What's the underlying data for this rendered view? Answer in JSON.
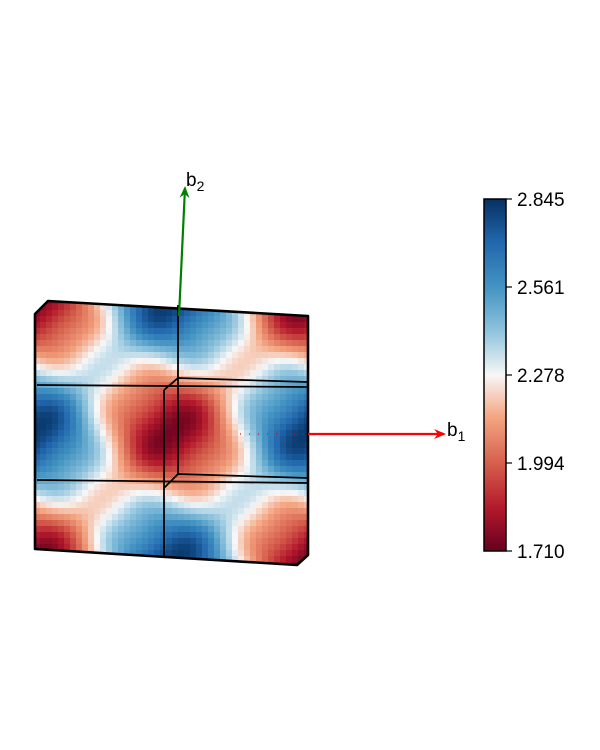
{
  "vectors": {
    "b1": {
      "base": "b",
      "sub": "1",
      "color": "#ff0000"
    },
    "b2": {
      "base": "b",
      "sub": "2",
      "color": "#008000"
    }
  },
  "colorbar": {
    "colormap": "RdBu",
    "ticks": [
      "2.845",
      "2.561",
      "2.278",
      "1.994",
      "1.710"
    ],
    "min": 1.71,
    "max": 2.845
  },
  "colors": {
    "low": "#67001f",
    "mid": "#f7f7f7",
    "high": "#053061",
    "outline": "#000000"
  }
}
